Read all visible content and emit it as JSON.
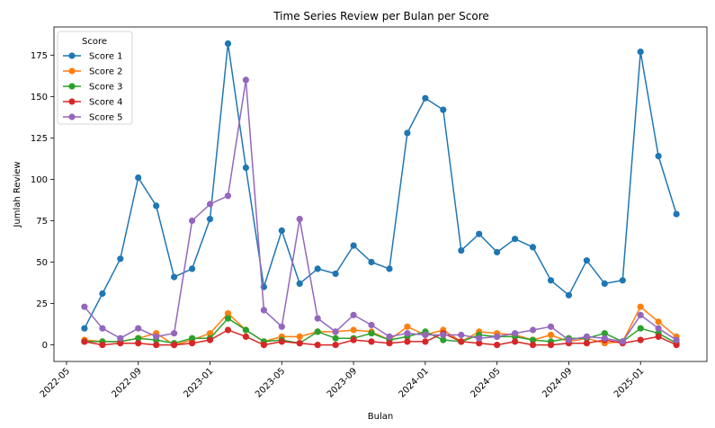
{
  "chart_data": {
    "type": "line",
    "title": "Time Series Review per Bulan per Score",
    "xlabel": "Bulan",
    "ylabel": "Jumlah Review",
    "ylim": [
      -10,
      192
    ],
    "grid": false,
    "legend": {
      "title": "Score",
      "placement": "top-left"
    },
    "x": [
      "2022-06",
      "2022-07",
      "2022-08",
      "2022-09",
      "2022-10",
      "2022-11",
      "2022-12",
      "2023-01",
      "2023-02",
      "2023-03",
      "2023-04",
      "2023-05",
      "2023-06",
      "2023-07",
      "2023-08",
      "2023-09",
      "2023-10",
      "2023-11",
      "2023-12",
      "2024-01",
      "2024-02",
      "2024-03",
      "2024-04",
      "2024-05",
      "2024-06",
      "2024-07",
      "2024-08",
      "2024-09",
      "2024-10",
      "2024-11",
      "2024-12",
      "2025-01",
      "2025-02",
      "2025-03"
    ],
    "x_ticks": [
      "2022-05",
      "2022-09",
      "2023-01",
      "2023-05",
      "2023-09",
      "2024-01",
      "2024-05",
      "2024-09",
      "2025-01"
    ],
    "y_ticks": [
      0,
      25,
      50,
      75,
      100,
      125,
      150,
      175
    ],
    "series": [
      {
        "name": "Score 1",
        "color": "#1f77b4",
        "values": [
          10,
          31,
          52,
          101,
          84,
          41,
          46,
          76,
          182,
          107,
          35,
          69,
          37,
          46,
          43,
          60,
          50,
          46,
          128,
          149,
          142,
          57,
          67,
          56,
          64,
          59,
          39,
          30,
          51,
          37,
          39,
          177,
          114,
          79
        ]
      },
      {
        "name": "Score 2",
        "color": "#ff7f0e",
        "values": [
          3,
          2,
          2,
          4,
          7,
          0,
          3,
          7,
          19,
          9,
          2,
          5,
          5,
          8,
          8,
          9,
          8,
          3,
          11,
          6,
          9,
          2,
          8,
          7,
          6,
          3,
          6,
          2,
          4,
          1,
          2,
          23,
          14,
          5
        ]
      },
      {
        "name": "Score 3",
        "color": "#2ca02c",
        "values": [
          2,
          2,
          2,
          4,
          3,
          1,
          4,
          4,
          16,
          9,
          2,
          3,
          1,
          8,
          4,
          4,
          7,
          3,
          5,
          8,
          3,
          2,
          6,
          5,
          5,
          3,
          2,
          4,
          4,
          7,
          2,
          10,
          7,
          1
        ]
      },
      {
        "name": "Score 4",
        "color": "#d62728",
        "values": [
          2,
          0,
          1,
          1,
          0,
          0,
          1,
          3,
          9,
          5,
          0,
          2,
          1,
          0,
          0,
          3,
          2,
          1,
          2,
          2,
          7,
          2,
          1,
          0,
          2,
          0,
          0,
          1,
          1,
          3,
          1,
          3,
          5,
          0
        ]
      },
      {
        "name": "Score 5",
        "color": "#9467bd",
        "values": [
          23,
          10,
          4,
          10,
          5,
          7,
          75,
          85,
          90,
          160,
          21,
          11,
          76,
          16,
          8,
          18,
          12,
          5,
          7,
          6,
          6,
          6,
          4,
          5,
          7,
          9,
          11,
          3,
          5,
          4,
          2,
          18,
          10,
          3
        ]
      }
    ]
  }
}
